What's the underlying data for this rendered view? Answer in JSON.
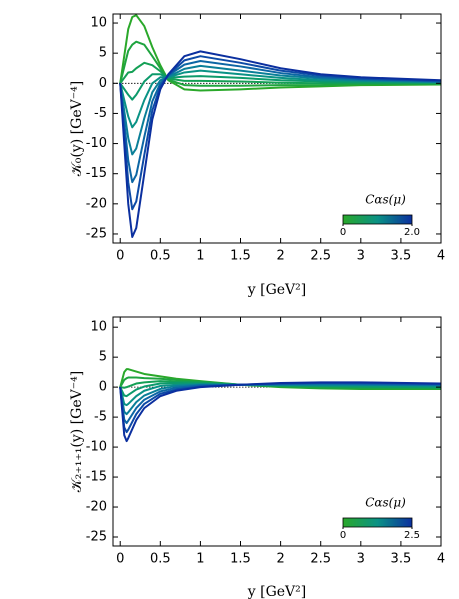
{
  "chart_data": [
    {
      "type": "line",
      "y_label": "𝒦₀(y) [GeV⁻⁴]",
      "x_label": "y [GeV²]",
      "x": [
        0,
        0.1,
        0.15,
        0.2,
        0.3,
        0.4,
        0.5,
        0.6,
        0.8,
        1,
        1.5,
        2,
        2.5,
        3,
        4
      ],
      "xlim": [
        -0.09,
        4
      ],
      "ylim": [
        -26.5,
        11.5
      ],
      "xticks": [
        0,
        0.5,
        1,
        1.5,
        2,
        2.5,
        3,
        3.5,
        4
      ],
      "yticks": [
        10,
        5,
        0,
        -5,
        -10,
        -15,
        -20,
        -25
      ],
      "colorbar": {
        "label": "Cαs(μ)",
        "range": [
          0,
          2
        ],
        "ticks": [
          0,
          {
            "value": 2,
            "label": "2.0"
          }
        ],
        "colors": [
          "#2aa82a",
          "#0a9285",
          "#0b2f9f"
        ]
      },
      "series": [
        {
          "color": "#2aa82a",
          "values": [
            0,
            9,
            11,
            11.3,
            9.5,
            6,
            3,
            0.5,
            -1,
            -1.2,
            -1,
            -0.7,
            -0.5,
            -0.3,
            -0.2
          ]
        },
        {
          "color": "#1fa43f",
          "values": [
            0,
            5.4,
            6.4,
            6.9,
            6.4,
            4.5,
            2.5,
            0.6,
            -0.3,
            -0.4,
            -0.4,
            -0.3,
            -0.3,
            -0.1,
            -0.1
          ]
        },
        {
          "color": "#14a055",
          "values": [
            0,
            1.8,
            1.9,
            2.5,
            3.4,
            3,
            2,
            0.8,
            0.4,
            0.4,
            0.3,
            0.1,
            0,
            0,
            0
          ]
        },
        {
          "color": "#0c9a6b",
          "values": [
            0,
            -1.9,
            -2.7,
            -1.9,
            0.3,
            1.5,
            1.5,
            0.9,
            1.1,
            1.2,
            0.9,
            0.5,
            0.3,
            0.2,
            0.1
          ]
        },
        {
          "color": "#0a9285",
          "values": [
            0,
            -5.5,
            -7.3,
            -6.4,
            -2.8,
            0,
            1,
            1,
            1.8,
            2.1,
            1.5,
            0.9,
            0.5,
            0.4,
            0.2
          ]
        },
        {
          "color": "#0a7f98",
          "values": [
            0,
            -9.1,
            -11.8,
            -10.8,
            -5.8,
            -1.5,
            0.5,
            1.1,
            2.4,
            2.9,
            2.1,
            1.3,
            0.8,
            0.5,
            0.2
          ]
        },
        {
          "color": "#0c66a4",
          "values": [
            0,
            -12.8,
            -16.4,
            -15.2,
            -8.9,
            -3,
            0,
            1.3,
            3.1,
            3.7,
            2.8,
            1.7,
            1,
            0.7,
            0.3
          ]
        },
        {
          "color": "#0d4aa6",
          "values": [
            0,
            -16.4,
            -20.9,
            -19.6,
            -11.9,
            -4.5,
            -0.5,
            1.4,
            3.8,
            4.5,
            3.4,
            2.1,
            1.3,
            0.8,
            0.4
          ]
        },
        {
          "color": "#0b2f9f",
          "values": [
            0,
            -20,
            -25.5,
            -24,
            -15,
            -6,
            -1,
            1.5,
            4.5,
            5.3,
            4,
            2.5,
            1.5,
            1,
            0.5
          ]
        }
      ]
    },
    {
      "type": "line",
      "y_label": "𝒦₂₊₁₊₁(y) [GeV⁻⁴]",
      "x_label": "y [GeV²]",
      "x": [
        0,
        0.05,
        0.08,
        0.1,
        0.2,
        0.3,
        0.5,
        0.7,
        1,
        1.5,
        2,
        2.5,
        3,
        4
      ],
      "xlim": [
        -0.09,
        4
      ],
      "ylim": [
        -26.5,
        11.7
      ],
      "xticks": [
        0,
        0.5,
        1,
        1.5,
        2,
        2.5,
        3,
        3.5,
        4
      ],
      "yticks": [
        10,
        5,
        0,
        -5,
        -10,
        -15,
        -20,
        -25
      ],
      "colorbar": {
        "label": "Cαs(μ)",
        "range": [
          0,
          2.5
        ],
        "ticks": [
          0,
          2.5
        ],
        "colors": [
          "#2aa82a",
          "#0a9285",
          "#0b2f9f"
        ]
      },
      "series": [
        {
          "color": "#2aa82a",
          "values": [
            0,
            2.5,
            3,
            3,
            2.6,
            2.2,
            1.8,
            1.4,
            1,
            0.4,
            0,
            -0.2,
            -0.3,
            -0.3
          ]
        },
        {
          "color": "#1fa43f",
          "values": [
            0,
            1.2,
            1.5,
            1.6,
            1.6,
            1.5,
            1.4,
            1.2,
            0.9,
            0.4,
            0.1,
            -0.1,
            -0.2,
            -0.2
          ]
        },
        {
          "color": "#14a055",
          "values": [
            0,
            -0.1,
            0,
            0.1,
            0.6,
            0.8,
            1,
            0.9,
            0.8,
            0.4,
            0.2,
            0.1,
            0,
            -0.1
          ]
        },
        {
          "color": "#0c9a6b",
          "values": [
            0,
            -1.4,
            -1.5,
            -1.3,
            -0.4,
            0.1,
            0.6,
            0.7,
            0.6,
            0.4,
            0.3,
            0.2,
            0.1,
            0
          ]
        },
        {
          "color": "#0a9285",
          "values": [
            0,
            -2.8,
            -3,
            -2.8,
            -1.5,
            -0.6,
            0.2,
            0.4,
            0.5,
            0.4,
            0.4,
            0.3,
            0.3,
            0.2
          ]
        },
        {
          "color": "#0a7f98",
          "values": [
            0,
            -4.1,
            -4.5,
            -4.2,
            -2.5,
            -1.4,
            -0.3,
            0.2,
            0.4,
            0.4,
            0.4,
            0.4,
            0.4,
            0.3
          ]
        },
        {
          "color": "#0c66a4",
          "values": [
            0,
            -5.4,
            -6,
            -5.6,
            -3.5,
            -2.1,
            -0.7,
            -0.1,
            0.3,
            0.4,
            0.5,
            0.6,
            0.5,
            0.4
          ]
        },
        {
          "color": "#0d4aa6",
          "values": [
            0,
            -6.7,
            -7.5,
            -7.1,
            -4.5,
            -2.8,
            -1.1,
            -0.4,
            0.1,
            0.4,
            0.6,
            0.7,
            0.7,
            0.5
          ]
        },
        {
          "color": "#0b2f9f",
          "values": [
            0,
            -8,
            -9,
            -8.5,
            -5.5,
            -3.5,
            -1.5,
            -0.6,
            0,
            0.4,
            0.7,
            0.8,
            0.8,
            0.6
          ]
        }
      ]
    }
  ]
}
